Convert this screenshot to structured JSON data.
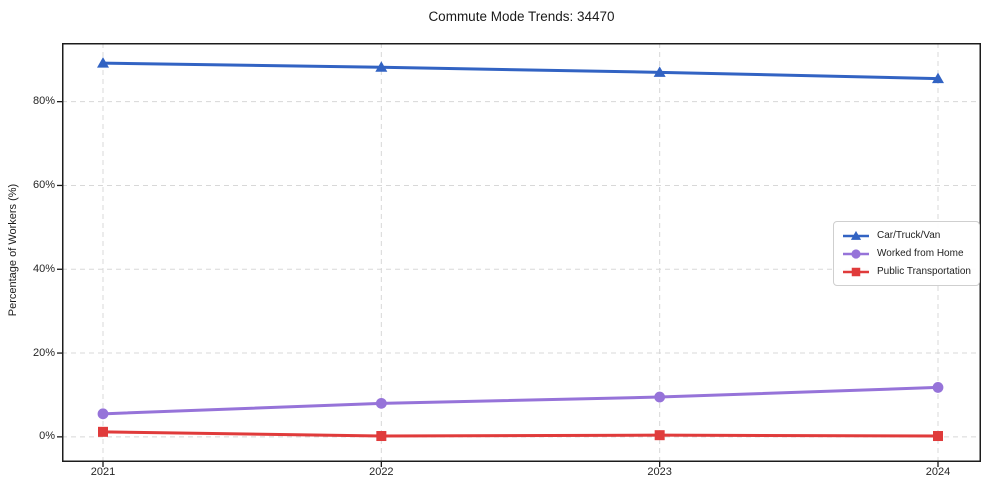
{
  "chart_data": {
    "type": "line",
    "title": "Commute Mode Trends: 34470",
    "xlabel": "",
    "ylabel": "Percentage of Workers (%)",
    "categories": [
      "2021",
      "2022",
      "2023",
      "2024"
    ],
    "series": [
      {
        "name": "Car/Truck/Van",
        "values": [
          89.2,
          88.2,
          87.0,
          85.5
        ],
        "color": "#3263c3",
        "marker": "triangle"
      },
      {
        "name": "Worked from Home",
        "values": [
          5.5,
          8.0,
          9.5,
          11.8
        ],
        "color": "#9673d9",
        "marker": "circle"
      },
      {
        "name": "Public Transportation",
        "values": [
          1.2,
          0.2,
          0.4,
          0.2
        ],
        "color": "#e03b3b",
        "marker": "square"
      }
    ],
    "yticks": [
      0,
      20,
      40,
      60,
      80
    ],
    "ytick_labels": [
      "0%",
      "20%",
      "40%",
      "60%",
      "80%"
    ],
    "ylim": [
      -6,
      94
    ],
    "grid": true,
    "grid_style": "dashed",
    "legend_position": "center right",
    "colors": {
      "grid": "#d8d8d8",
      "axis_border": "#1c1c1c",
      "text": "#1a1a1a"
    }
  }
}
